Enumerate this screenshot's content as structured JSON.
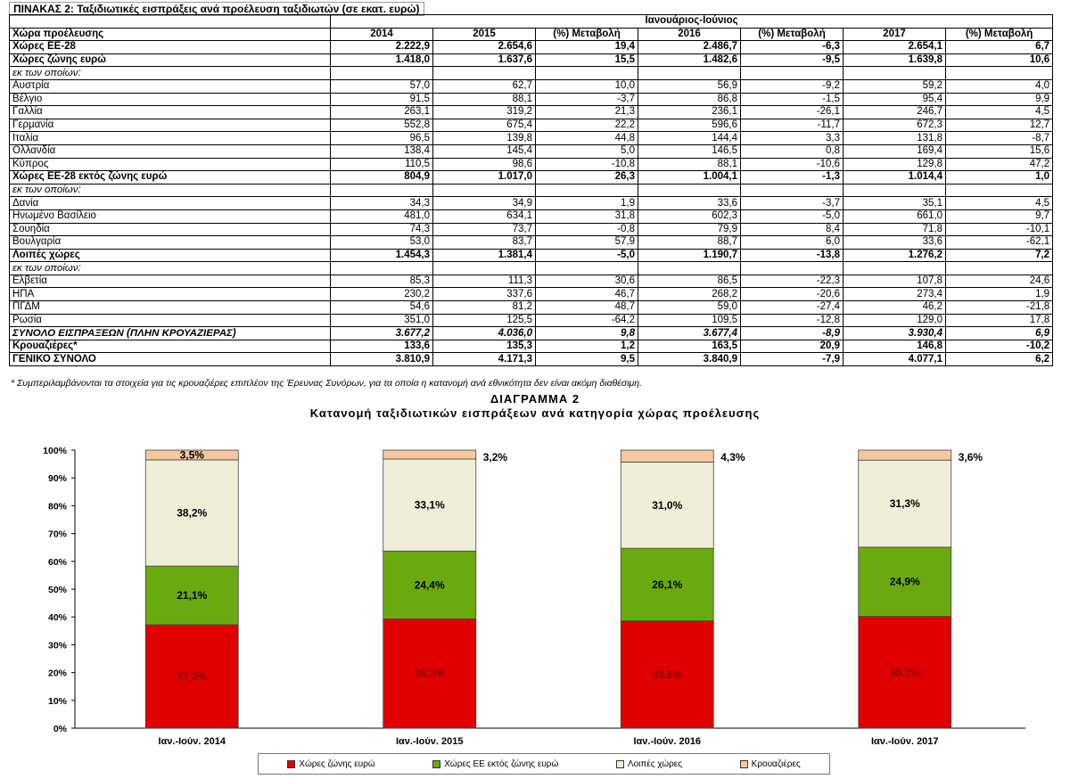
{
  "table": {
    "title": "ΠΙΝΑΚΑΣ 2: Ταξιδιωτικές εισπράξεις ανά προέλευση ταξιδιωτών (σε εκατ. ευρώ)",
    "period_header": "Ιανουάριος-Ιούνιος",
    "first_col_header": "Χώρα προέλευσης",
    "columns": [
      "2014",
      "2015",
      "(%) Μεταβολή",
      "2016",
      "(%) Μεταβολή",
      "2017",
      "(%) Μεταβολή"
    ],
    "rows": [
      {
        "label": "Χώρες ΕΕ-28",
        "style": "bold",
        "values": [
          "2.222,9",
          "2.654,6",
          "19,4",
          "2.486,7",
          "-6,3",
          "2.654,1",
          "6,7"
        ]
      },
      {
        "label": "Χώρες ζώνης ευρώ",
        "style": "bold",
        "values": [
          "1.418,0",
          "1.637,6",
          "15,5",
          "1.482,6",
          "-9,5",
          "1.639,8",
          "10,6"
        ]
      },
      {
        "label": "εκ των οποίων:",
        "style": "ital",
        "values": [
          "",
          "",
          "",
          "",
          "",
          "",
          ""
        ]
      },
      {
        "label": "Αυστρία",
        "style": "",
        "values": [
          "57,0",
          "62,7",
          "10,0",
          "56,9",
          "-9,2",
          "59,2",
          "4,0"
        ]
      },
      {
        "label": "Βέλγιο",
        "style": "",
        "values": [
          "91,5",
          "88,1",
          "-3,7",
          "86,8",
          "-1,5",
          "95,4",
          "9,9"
        ]
      },
      {
        "label": "Γαλλία",
        "style": "",
        "values": [
          "263,1",
          "319,2",
          "21,3",
          "236,1",
          "-26,1",
          "246,7",
          "4,5"
        ]
      },
      {
        "label": "Γερμανία",
        "style": "",
        "values": [
          "552,8",
          "675,4",
          "22,2",
          "596,6",
          "-11,7",
          "672,3",
          "12,7"
        ]
      },
      {
        "label": "Ιταλία",
        "style": "",
        "values": [
          "96,5",
          "139,8",
          "44,8",
          "144,4",
          "3,3",
          "131,8",
          "-8,7"
        ]
      },
      {
        "label": "Ολλανδία",
        "style": "",
        "values": [
          "138,4",
          "145,4",
          "5,0",
          "146,5",
          "0,8",
          "169,4",
          "15,6"
        ]
      },
      {
        "label": "Κύπρος",
        "style": "",
        "values": [
          "110,5",
          "98,6",
          "-10,8",
          "88,1",
          "-10,6",
          "129,8",
          "47,2"
        ]
      },
      {
        "label": "Χώρες ΕΕ-28 εκτός ζώνης ευρώ",
        "style": "bold",
        "values": [
          "804,9",
          "1.017,0",
          "26,3",
          "1.004,1",
          "-1,3",
          "1.014,4",
          "1,0"
        ]
      },
      {
        "label": "εκ των οποίων:",
        "style": "ital",
        "values": [
          "",
          "",
          "",
          "",
          "",
          "",
          ""
        ]
      },
      {
        "label": "Δανία",
        "style": "",
        "values": [
          "34,3",
          "34,9",
          "1,9",
          "33,6",
          "-3,7",
          "35,1",
          "4,5"
        ]
      },
      {
        "label": "Ηνωμένο Βασίλειο",
        "style": "",
        "values": [
          "481,0",
          "634,1",
          "31,8",
          "602,3",
          "-5,0",
          "661,0",
          "9,7"
        ]
      },
      {
        "label": "Σουηδία",
        "style": "",
        "values": [
          "74,3",
          "73,7",
          "-0,8",
          "79,9",
          "8,4",
          "71,8",
          "-10,1"
        ]
      },
      {
        "label": "Βουλγαρία",
        "style": "",
        "values": [
          "53,0",
          "83,7",
          "57,9",
          "88,7",
          "6,0",
          "33,6",
          "-62,1"
        ]
      },
      {
        "label": "Λοιπές χώρες",
        "style": "bold",
        "values": [
          "1.454,3",
          "1.381,4",
          "-5,0",
          "1.190,7",
          "-13,8",
          "1.276,2",
          "7,2"
        ]
      },
      {
        "label": "εκ των οποίων:",
        "style": "ital",
        "values": [
          "",
          "",
          "",
          "",
          "",
          "",
          ""
        ]
      },
      {
        "label": "Ελβετία",
        "style": "",
        "values": [
          "85,3",
          "111,3",
          "30,6",
          "86,5",
          "-22,3",
          "107,8",
          "24,6"
        ]
      },
      {
        "label": "ΗΠΑ",
        "style": "",
        "values": [
          "230,2",
          "337,6",
          "46,7",
          "268,2",
          "-20,6",
          "273,4",
          "1,9"
        ]
      },
      {
        "label": "ΠΓΔΜ",
        "style": "",
        "values": [
          "54,6",
          "81,2",
          "48,7",
          "59,0",
          "-27,4",
          "46,2",
          "-21,8"
        ]
      },
      {
        "label": "Ρωσία",
        "style": "",
        "values": [
          "351,0",
          "125,5",
          "-64,2",
          "109,5",
          "-12,8",
          "129,0",
          "17,8"
        ]
      },
      {
        "label": "ΣΥΝΟΛΟ ΕΙΣΠΡΑΞΕΩΝ (ΠΛΗΝ ΚΡΟΥΑΖΙΕΡΑΣ)",
        "style": "bold ital",
        "values": [
          "3.677,2",
          "4.036,0",
          "9,8",
          "3.677,4",
          "-8,9",
          "3.930,4",
          "6,9"
        ]
      },
      {
        "label": "Κρουαζιέρες*",
        "style": "bold",
        "values": [
          "133,6",
          "135,3",
          "1,2",
          "163,5",
          "20,9",
          "146,8",
          "-10,2"
        ]
      },
      {
        "label": "ΓΕΝΙΚΟ ΣΥΝΟΛΟ",
        "style": "bold",
        "values": [
          "3.810,9",
          "4.171,3",
          "9,5",
          "3.840,9",
          "-7,9",
          "4.077,1",
          "6,2"
        ]
      }
    ],
    "footnote": "* Συμπεριλαμβάνονται τα στοιχεία για τις κρουαζιέρες επιπλέον της Έρευνας Συνόρων, για τα οποία η κατανομή ανά εθνικότητα δεν είναι ακόμη διαθέσιμη."
  },
  "chart_data": {
    "type": "bar",
    "stacked": true,
    "title": "ΔΙΑΓΡΑΜΜΑ 2",
    "subtitle": "Κατανομή ταξιδιωτικών εισπράξεων ανά κατηγορία χώρας προέλευσης",
    "categories": [
      "Ιαν.-Ιούν. 2014",
      "Ιαν.-Ιούν. 2015",
      "Ιαν.-Ιούν. 2016",
      "Ιαν.-Ιούν. 2017"
    ],
    "ylim": [
      0,
      100
    ],
    "yticks": [
      "0%",
      "10%",
      "20%",
      "30%",
      "40%",
      "50%",
      "60%",
      "70%",
      "80%",
      "90%",
      "100%"
    ],
    "legend_position": "bottom",
    "series": [
      {
        "name": "Χώρες ζώνης ευρώ",
        "color": "#e00000",
        "values": [
          37.2,
          39.3,
          38.6,
          40.2
        ],
        "labels": [
          "37,2%",
          "39,3%",
          "38,6%",
          "40,2%"
        ]
      },
      {
        "name": "Χώρες ΕΕ εκτός ζώνης ευρώ",
        "color": "#6aaa10",
        "values": [
          21.1,
          24.4,
          26.1,
          24.9
        ],
        "labels": [
          "21,1%",
          "24,4%",
          "26,1%",
          "24,9%"
        ]
      },
      {
        "name": "Λοιπές χώρες",
        "color": "#f0eed8",
        "values": [
          38.2,
          33.1,
          31.0,
          31.3
        ],
        "labels": [
          "38,2%",
          "33,1%",
          "31,0%",
          "31,3%"
        ]
      },
      {
        "name": "Κρουαζιέρες",
        "color": "#f6c8a0",
        "values": [
          3.5,
          3.2,
          4.3,
          3.6
        ],
        "labels": [
          "3,5%",
          "3,2%",
          "4,3%",
          "3,6%"
        ]
      }
    ]
  }
}
